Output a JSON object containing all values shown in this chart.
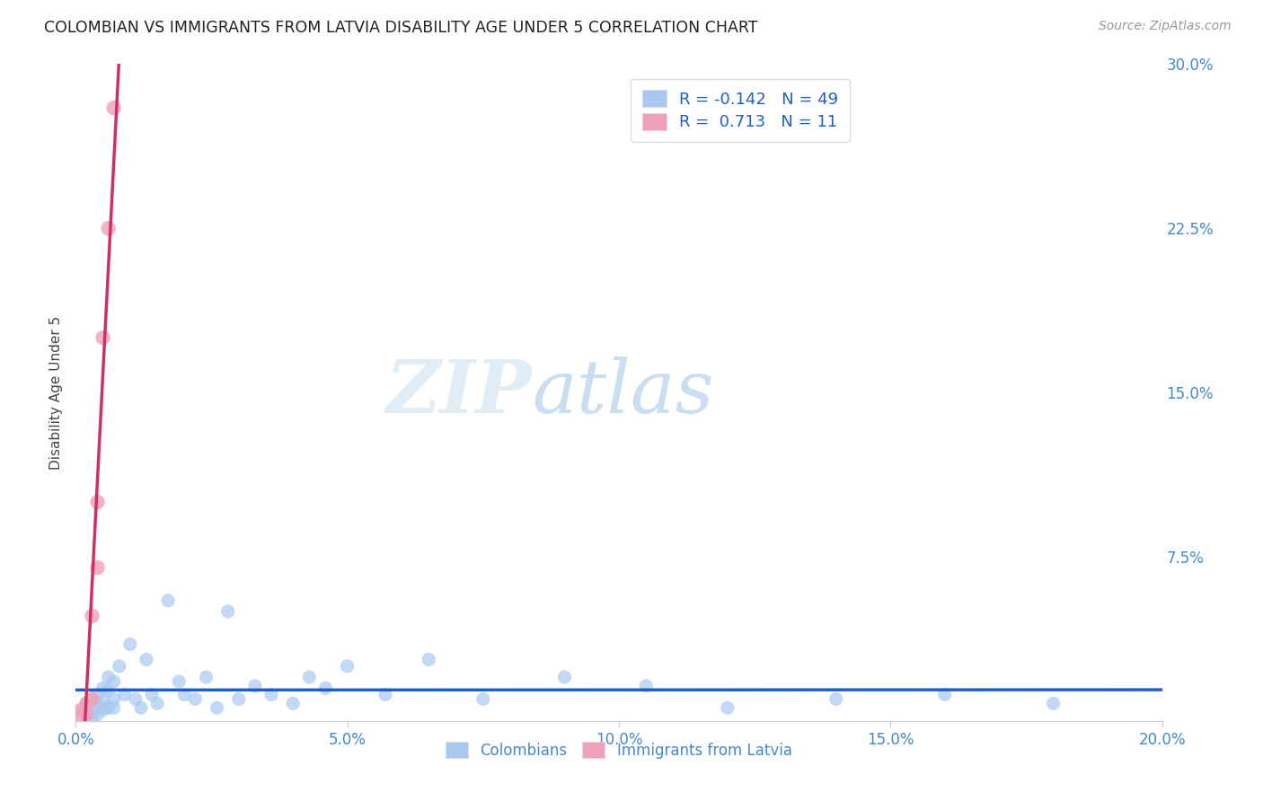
{
  "title": "COLOMBIAN VS IMMIGRANTS FROM LATVIA DISABILITY AGE UNDER 5 CORRELATION CHART",
  "source": "Source: ZipAtlas.com",
  "ylabel": "Disability Age Under 5",
  "xlim": [
    0.0,
    0.2
  ],
  "ylim": [
    0.0,
    0.3
  ],
  "xticks": [
    0.0,
    0.05,
    0.1,
    0.15,
    0.2
  ],
  "xticklabels": [
    "0.0%",
    "5.0%",
    "10.0%",
    "15.0%",
    "20.0%"
  ],
  "yticks": [
    0.0,
    0.075,
    0.15,
    0.225,
    0.3
  ],
  "yticklabels": [
    "",
    "7.5%",
    "15.0%",
    "22.5%",
    "30.0%"
  ],
  "background_color": "#ffffff",
  "grid_color": "#c8c8c8",
  "title_color": "#222222",
  "title_fontsize": 12.5,
  "axis_label_color": "#444444",
  "blue_color": "#a8c8f0",
  "blue_line_color": "#2060c0",
  "pink_color": "#f0a0b8",
  "pink_line_color": "#d03060",
  "dashed_line_color": "#b0b0b0",
  "tick_color": "#4488cc",
  "R_blue": -0.142,
  "N_blue": 49,
  "R_pink": 0.713,
  "N_pink": 11,
  "legend_labels": [
    "Colombians",
    "Immigrants from Latvia"
  ],
  "watermark_left": "ZIP",
  "watermark_right": "atlas",
  "blue_x": [
    0.001,
    0.002,
    0.002,
    0.003,
    0.003,
    0.003,
    0.004,
    0.004,
    0.004,
    0.005,
    0.005,
    0.005,
    0.006,
    0.006,
    0.006,
    0.007,
    0.007,
    0.007,
    0.008,
    0.009,
    0.01,
    0.011,
    0.012,
    0.013,
    0.014,
    0.015,
    0.017,
    0.019,
    0.02,
    0.022,
    0.024,
    0.026,
    0.028,
    0.03,
    0.033,
    0.036,
    0.04,
    0.043,
    0.046,
    0.05,
    0.057,
    0.065,
    0.075,
    0.09,
    0.105,
    0.12,
    0.14,
    0.16,
    0.18
  ],
  "blue_y": [
    0.005,
    0.008,
    0.003,
    0.01,
    0.005,
    0.002,
    0.012,
    0.007,
    0.003,
    0.015,
    0.009,
    0.005,
    0.02,
    0.014,
    0.006,
    0.018,
    0.01,
    0.006,
    0.025,
    0.012,
    0.035,
    0.01,
    0.006,
    0.028,
    0.012,
    0.008,
    0.055,
    0.018,
    0.012,
    0.01,
    0.02,
    0.006,
    0.05,
    0.01,
    0.016,
    0.012,
    0.008,
    0.02,
    0.015,
    0.025,
    0.012,
    0.028,
    0.01,
    0.02,
    0.016,
    0.006,
    0.01,
    0.012,
    0.008
  ],
  "pink_x": [
    0.001,
    0.001,
    0.002,
    0.002,
    0.003,
    0.003,
    0.004,
    0.004,
    0.005,
    0.006,
    0.007
  ],
  "pink_y": [
    0.002,
    0.005,
    0.003,
    0.008,
    0.01,
    0.048,
    0.07,
    0.1,
    0.175,
    0.225,
    0.28
  ]
}
